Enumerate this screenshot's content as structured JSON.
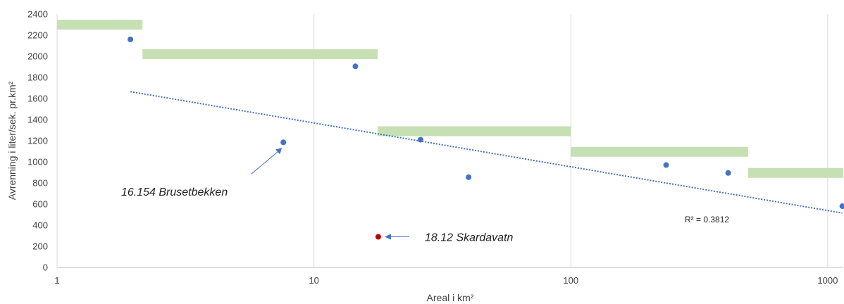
{
  "chart_data": {
    "type": "scatter",
    "xlabel": "Areal i km²",
    "ylabel": "Avrenning i liter/sek. pr.km²",
    "x_scale": "log",
    "xlim": [
      1,
      1150
    ],
    "ylim": [
      0,
      2400
    ],
    "x_ticks": [
      1,
      10,
      100,
      1000
    ],
    "x_tick_labels": [
      "1",
      "10",
      "100",
      "1000"
    ],
    "y_ticks": [
      0,
      200,
      400,
      600,
      800,
      1000,
      1200,
      1400,
      1600,
      1800,
      2000,
      2200,
      2400
    ],
    "y_tick_labels": [
      "0",
      "200",
      "400",
      "600",
      "800",
      "1000",
      "1200",
      "1400",
      "1600",
      "1800",
      "2000",
      "2200",
      "2400"
    ],
    "grid": "vertical-major",
    "points": [
      {
        "x": 1.93,
        "y": 2160,
        "color": "#4472c4"
      },
      {
        "x": 7.6,
        "y": 1185,
        "color": "#4472c4"
      },
      {
        "x": 14.5,
        "y": 1905,
        "color": "#4472c4"
      },
      {
        "x": 17.8,
        "y": 290,
        "color": "#c00000"
      },
      {
        "x": 26.0,
        "y": 1210,
        "color": "#4472c4"
      },
      {
        "x": 40.0,
        "y": 855,
        "color": "#4472c4"
      },
      {
        "x": 235,
        "y": 970,
        "color": "#4472c4"
      },
      {
        "x": 410,
        "y": 895,
        "color": "#4472c4"
      },
      {
        "x": 1140,
        "y": 580,
        "color": "#4472c4"
      }
    ],
    "trendline": {
      "x": [
        1.93,
        1140
      ],
      "y": [
        1665,
        515
      ],
      "color": "#4472c4",
      "style": "dotted"
    },
    "r2_label": "R² = 0.3812",
    "bands": [
      {
        "x": [
          1,
          2.15
        ],
        "y": 2300
      },
      {
        "x": [
          2.15,
          17.7
        ],
        "y": 2020
      },
      {
        "x": [
          17.7,
          100
        ],
        "y": 1290
      },
      {
        "x": [
          100,
          490
        ],
        "y": 1095
      },
      {
        "x": [
          490,
          1150
        ],
        "y": 895
      }
    ],
    "band_color": "#c6e0b4",
    "annotations": [
      {
        "text": "16.154 Brusetbekken",
        "target": {
          "x": 7.6,
          "y": 1185
        }
      },
      {
        "text": "18.12 Skardavatn",
        "target": {
          "x": 17.8,
          "y": 290
        }
      }
    ]
  }
}
